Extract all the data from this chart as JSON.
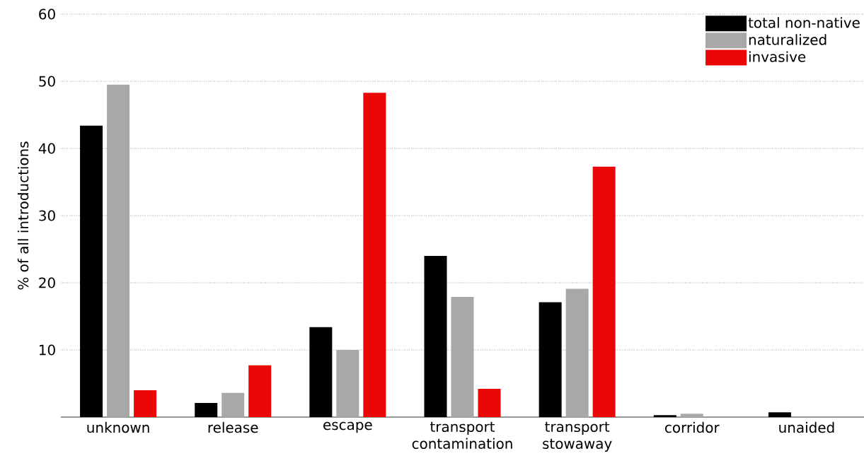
{
  "chart_data": {
    "type": "bar",
    "ylabel": "% of all introductions",
    "categories": [
      "unknown",
      "release",
      "escape",
      "transport contamination",
      "transport stowaway",
      "corridor",
      "unaided"
    ],
    "series": [
      {
        "name": "total non-native",
        "color": "#000000",
        "values": [
          43.4,
          2.1,
          13.4,
          24.0,
          17.1,
          0.3,
          0.7
        ]
      },
      {
        "name": "naturalized",
        "color": "#a8a8a8",
        "values": [
          49.5,
          3.6,
          10.0,
          17.9,
          19.1,
          0.5,
          0
        ]
      },
      {
        "name": "invasive",
        "color": "#ea0707",
        "values": [
          4.0,
          7.7,
          48.3,
          4.2,
          37.3,
          0,
          0
        ]
      }
    ],
    "ylim": [
      0,
      60
    ],
    "yticks": [
      10,
      20,
      30,
      40,
      50,
      60
    ],
    "grid": "y",
    "legend": "top right"
  }
}
